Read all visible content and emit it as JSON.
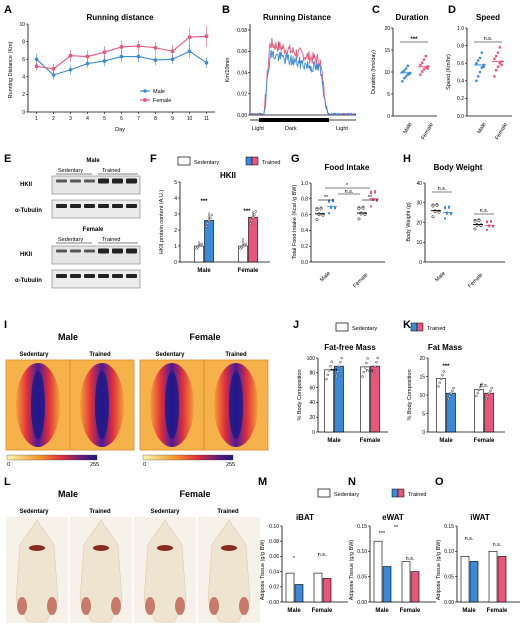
{
  "panels": {
    "A": "A",
    "B": "B",
    "C": "C",
    "D": "D",
    "E": "E",
    "F": "F",
    "G": "G",
    "H": "H",
    "I": "I",
    "J": "J",
    "K": "K",
    "L": "L",
    "M": "M",
    "N": "N",
    "O": "O"
  },
  "colors": {
    "male": "#3b8ad9",
    "female": "#e8567a",
    "sedentary": "#ffffff"
  },
  "legends": {
    "sedentary": "Sedentary",
    "trained": "Trained"
  },
  "A": {
    "title": "Running distance",
    "ylabel": "Running Distance (Km)",
    "xlabel": "Day",
    "legend": [
      "Male",
      "Female"
    ]
  },
  "B": {
    "title": "Running Distance",
    "ylabel": "Km/10min",
    "periods": [
      "Light",
      "Dark",
      "Light"
    ]
  },
  "C": {
    "title": "Duration",
    "ylabel": "Duration (hrs/day)",
    "sig": "***",
    "groups": [
      "Male",
      "Female"
    ]
  },
  "D": {
    "title": "Speed",
    "ylabel": "Speed (Km/hr)",
    "sig": "n.s.",
    "groups": [
      "Male",
      "Female"
    ]
  },
  "E": {
    "male": "Male",
    "female": "Female",
    "cols": [
      "Sedentary",
      "Trained"
    ],
    "rows": [
      "HKII",
      "α-Tubulin"
    ]
  },
  "F": {
    "title": "HKII",
    "ylabel": "HKII protein content (A.U.)",
    "sig": [
      "***",
      "***"
    ],
    "groups": [
      "Male",
      "Female"
    ]
  },
  "G": {
    "title": "Food Intake",
    "ylabel": "Total Food Intake (Kcal /g BW)",
    "sig": [
      "*",
      "**",
      "n.s.",
      "**"
    ],
    "groups": [
      "Male",
      "Female"
    ]
  },
  "H": {
    "title": "Body Weight",
    "ylabel": "Body Weight (g)",
    "sig": [
      "n.s.",
      "n.s."
    ],
    "groups": [
      "Male",
      "Female"
    ]
  },
  "I": {
    "male": "Male",
    "female": "Female",
    "cols": [
      "Sedentary",
      "Trained"
    ],
    "scale": [
      "0",
      "255"
    ]
  },
  "J": {
    "title": "Fat-free Mass",
    "ylabel": "% Body Composition",
    "sig": [
      "***",
      "n.s."
    ],
    "groups": [
      "Male",
      "Female"
    ]
  },
  "K": {
    "title": "Fat Mass",
    "ylabel": "% Body Composition",
    "sig": [
      "***",
      "n.s."
    ],
    "groups": [
      "Male",
      "Female"
    ]
  },
  "L": {
    "male": "Male",
    "female": "Female",
    "cols": [
      "Sedentary",
      "Trained"
    ]
  },
  "M": {
    "title": "iBAT",
    "ylabel": "Adipose Tissue (g/g BW)",
    "sig": [
      "*",
      "n.s."
    ],
    "groups": [
      "Male",
      "Female"
    ]
  },
  "N": {
    "title": "eWAT",
    "ylabel": "Adipose Tissue (g/g BW)",
    "sig": [
      "***",
      "**",
      "n.s."
    ],
    "groups": [
      "Male",
      "Female"
    ]
  },
  "O": {
    "title": "iWAT",
    "ylabel": "Adipose Tissue (g/g BW)",
    "sig": [
      "n.s.",
      "n.s."
    ],
    "groups": [
      "Male",
      "Female"
    ]
  },
  "chart_data": [
    {
      "id": "A",
      "type": "line",
      "title": "Running distance",
      "xlabel": "Day",
      "ylabel": "Running Distance (Km)",
      "x": [
        1,
        2,
        3,
        4,
        5,
        6,
        7,
        8,
        9,
        10,
        11
      ],
      "xlim": [
        0.5,
        11.5
      ],
      "ylim": [
        0,
        10
      ],
      "yticks": [
        0,
        2,
        4,
        6,
        8,
        10
      ],
      "series": [
        {
          "name": "Male",
          "values": [
            6.0,
            4.2,
            4.8,
            5.5,
            5.8,
            6.3,
            6.3,
            5.9,
            6.0,
            6.9,
            5.6
          ],
          "err": [
            0.6,
            0.5,
            0.6,
            0.5,
            0.6,
            0.6,
            0.6,
            0.6,
            0.5,
            0.8,
            0.6
          ]
        },
        {
          "name": "Female",
          "values": [
            5.2,
            4.9,
            6.4,
            6.3,
            6.8,
            7.4,
            7.5,
            7.3,
            6.9,
            8.5,
            8.6
          ],
          "err": [
            0.5,
            0.6,
            0.7,
            0.7,
            0.7,
            0.7,
            0.6,
            0.7,
            0.7,
            1.1,
            1.2
          ]
        }
      ]
    },
    {
      "id": "B",
      "type": "line",
      "title": "Running Distance",
      "ylabel": "Km/10min",
      "ylim": [
        0,
        0.08
      ],
      "yticks": [
        0.0,
        0.02,
        0.04,
        0.06,
        0.08
      ],
      "x_range_hours": [
        0,
        24
      ]
    },
    {
      "id": "C",
      "type": "scatter",
      "title": "Duration",
      "ylabel": "Duration (hrs/day)",
      "ylim": [
        0,
        20
      ],
      "yticks": [
        0,
        5,
        10,
        15,
        20
      ],
      "categories": [
        "Male",
        "Female"
      ],
      "means": [
        9.8,
        11.2
      ],
      "points": [
        [
          7.9,
          8.6,
          9.0,
          9.4,
          9.8,
          10.0,
          10.3,
          10.8,
          11.4,
          9.6
        ],
        [
          9.4,
          10.1,
          10.6,
          11.0,
          11.3,
          11.6,
          12.1,
          12.8,
          13.6,
          10.8
        ]
      ]
    },
    {
      "id": "D",
      "type": "scatter",
      "title": "Speed",
      "ylabel": "Speed (Km/hr)",
      "ylim": [
        0,
        1.0
      ],
      "yticks": [
        0.0,
        0.2,
        0.4,
        0.6,
        0.8,
        1.0
      ],
      "categories": [
        "Male",
        "Female"
      ],
      "means": [
        0.58,
        0.62
      ],
      "points": [
        [
          0.4,
          0.45,
          0.5,
          0.55,
          0.58,
          0.6,
          0.63,
          0.66,
          0.72,
          0.56
        ],
        [
          0.45,
          0.52,
          0.56,
          0.6,
          0.62,
          0.65,
          0.68,
          0.72,
          0.78,
          0.58
        ]
      ]
    },
    {
      "id": "F",
      "type": "bar",
      "title": "HKII",
      "ylabel": "HKII protein content (A.U.)",
      "ylim": [
        0,
        5
      ],
      "yticks": [
        0,
        1,
        2,
        3,
        4,
        5
      ],
      "categories": [
        "Male",
        "Female"
      ],
      "series": [
        {
          "name": "Sedentary",
          "values": [
            1.0,
            1.0
          ],
          "err": [
            0.3,
            0.5
          ]
        },
        {
          "name": "Trained",
          "values": [
            2.6,
            2.8
          ],
          "err": [
            0.5,
            0.4
          ]
        }
      ]
    },
    {
      "id": "G",
      "type": "scatter",
      "title": "Food Intake",
      "ylabel": "Total Food Intake (Kcal /g BW)",
      "ylim": [
        0,
        1.0
      ],
      "yticks": [
        0.0,
        0.2,
        0.4,
        0.6,
        0.8,
        1.0
      ],
      "categories": [
        "Male Sed",
        "Male Trn",
        "Female Sed",
        "Female Trn"
      ],
      "means": [
        0.61,
        0.7,
        0.62,
        0.8
      ]
    },
    {
      "id": "H",
      "type": "scatter",
      "title": "Body Weight",
      "ylabel": "Body Weight (g)",
      "ylim": [
        0,
        40
      ],
      "yticks": [
        0,
        10,
        20,
        30,
        40
      ],
      "categories": [
        "Male Sed",
        "Male Trn",
        "Female Sed",
        "Female Trn"
      ],
      "means": [
        26,
        25,
        19,
        18.5
      ]
    },
    {
      "id": "J",
      "type": "bar",
      "title": "Fat-free Mass",
      "ylabel": "% Body Composition",
      "ylim": [
        0,
        100
      ],
      "yticks": [
        0,
        20,
        40,
        60,
        80,
        100
      ],
      "categories": [
        "Male",
        "Female"
      ],
      "series": [
        {
          "name": "Sedentary",
          "values": [
            84,
            88
          ]
        },
        {
          "name": "Trained",
          "values": [
            89,
            89
          ]
        }
      ]
    },
    {
      "id": "K",
      "type": "bar",
      "title": "Fat Mass",
      "ylabel": "% Body Composition",
      "ylim": [
        0,
        20
      ],
      "yticks": [
        0,
        5,
        10,
        15,
        20
      ],
      "categories": [
        "Male",
        "Female"
      ],
      "series": [
        {
          "name": "Sedentary",
          "values": [
            14.5,
            11.5
          ]
        },
        {
          "name": "Trained",
          "values": [
            10.5,
            10.5
          ]
        }
      ]
    },
    {
      "id": "M",
      "type": "bar",
      "title": "iBAT",
      "ylabel": "Adipose Tissue (g/g BW)",
      "ylim": [
        0,
        0.1
      ],
      "yticks": [
        0.0,
        0.02,
        0.04,
        0.06,
        0.08,
        0.1
      ],
      "categories": [
        "Male",
        "Female"
      ],
      "series": [
        {
          "name": "Sedentary",
          "values": [
            0.038,
            0.038
          ]
        },
        {
          "name": "Trained",
          "values": [
            0.023,
            0.031
          ]
        }
      ]
    },
    {
      "id": "N",
      "type": "bar",
      "title": "eWAT",
      "ylabel": "Adipose Tissue (g/g BW)",
      "ylim": [
        0,
        0.15
      ],
      "yticks": [
        0.0,
        0.05,
        0.1,
        0.15
      ],
      "categories": [
        "Male",
        "Female"
      ],
      "series": [
        {
          "name": "Sedentary",
          "values": [
            0.12,
            0.08
          ]
        },
        {
          "name": "Trained",
          "values": [
            0.07,
            0.06
          ]
        }
      ]
    },
    {
      "id": "O",
      "type": "bar",
      "title": "iWAT",
      "ylabel": "Adipose Tissue (g/g BW)",
      "ylim": [
        0,
        0.15
      ],
      "yticks": [
        0.0,
        0.05,
        0.1,
        0.15
      ],
      "categories": [
        "Male",
        "Female"
      ],
      "series": [
        {
          "name": "Sedentary",
          "values": [
            0.09,
            0.1
          ]
        },
        {
          "name": "Trained",
          "values": [
            0.08,
            0.09
          ]
        }
      ]
    }
  ]
}
